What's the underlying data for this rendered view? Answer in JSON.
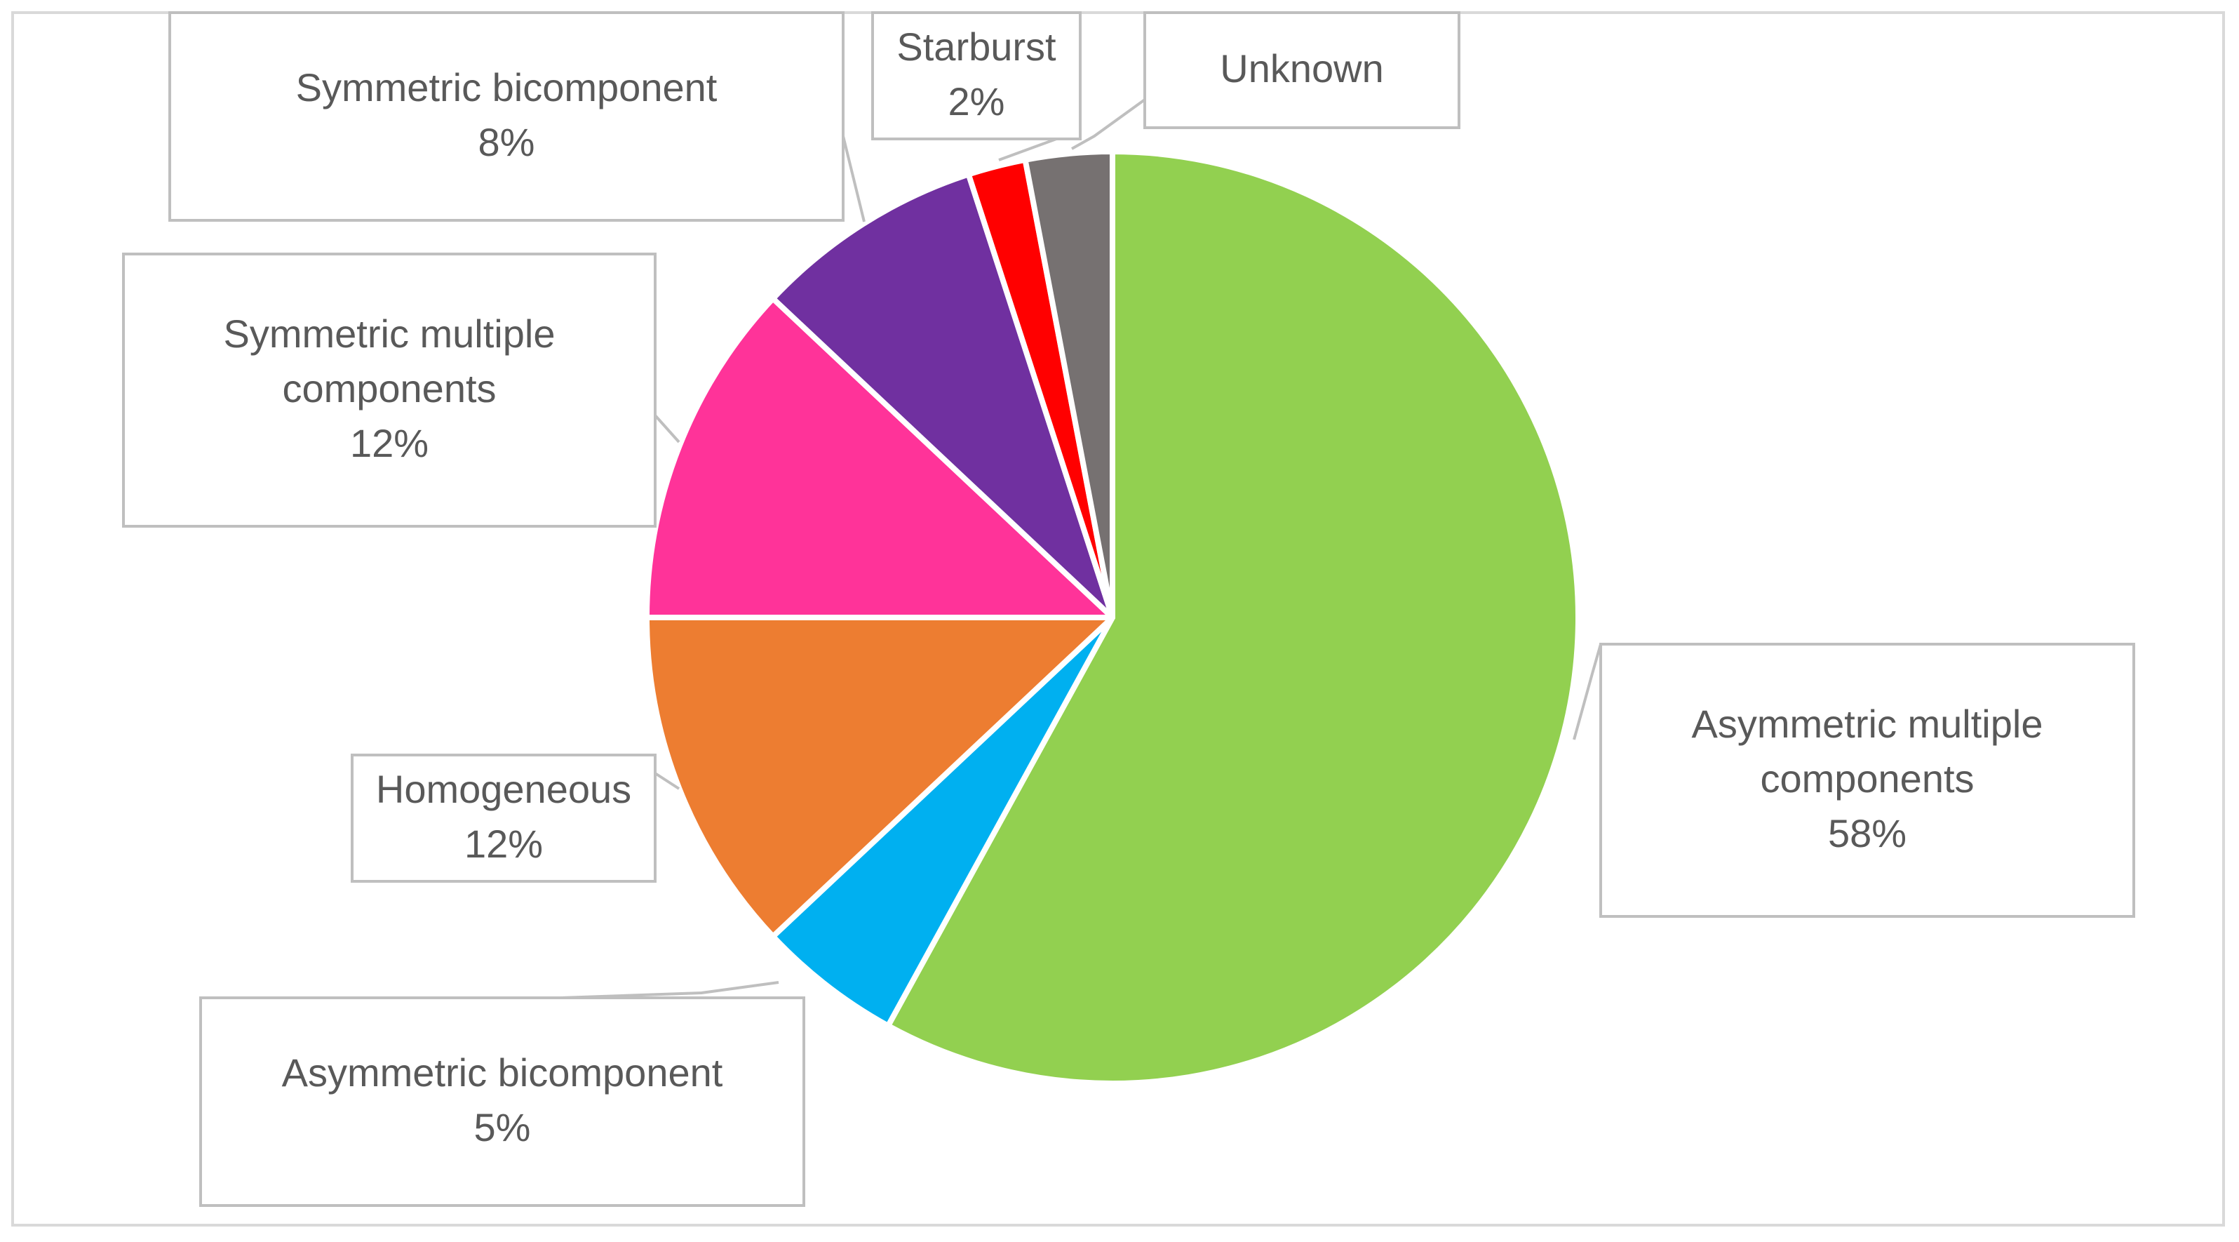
{
  "chart_data": {
    "type": "pie",
    "title": "",
    "slices": [
      {
        "label": "Asymmetric multiple components",
        "value": 58,
        "display": "58%",
        "color": "#92d050"
      },
      {
        "label": "Asymmetric bicomponent",
        "value": 5,
        "display": "5%",
        "color": "#00b0f0"
      },
      {
        "label": "Homogeneous",
        "value": 12,
        "display": "12%",
        "color": "#ed7d31"
      },
      {
        "label": "Symmetric multiple components",
        "value": 12,
        "display": "12%",
        "color": "#ff3399"
      },
      {
        "label": "Symmetric bicomponent",
        "value": 8,
        "display": "8%",
        "color": "#7030a0"
      },
      {
        "label": "Starburst",
        "value": 2,
        "display": "2%",
        "color": "#ff0000"
      },
      {
        "label": "Unknown",
        "value": 3,
        "display": "",
        "color": "#767171"
      }
    ],
    "start": "12 o'clock",
    "direction": "clockwise",
    "labels": "callouts with leader lines",
    "legend": "none"
  }
}
